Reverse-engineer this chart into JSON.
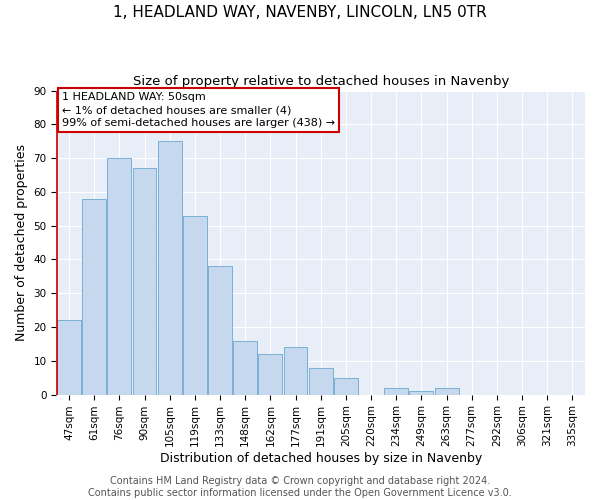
{
  "title": "1, HEADLAND WAY, NAVENBY, LINCOLN, LN5 0TR",
  "subtitle": "Size of property relative to detached houses in Navenby",
  "xlabel": "Distribution of detached houses by size in Navenby",
  "ylabel": "Number of detached properties",
  "bar_labels": [
    "47sqm",
    "61sqm",
    "76sqm",
    "90sqm",
    "105sqm",
    "119sqm",
    "133sqm",
    "148sqm",
    "162sqm",
    "177sqm",
    "191sqm",
    "205sqm",
    "220sqm",
    "234sqm",
    "249sqm",
    "263sqm",
    "277sqm",
    "292sqm",
    "306sqm",
    "321sqm",
    "335sqm"
  ],
  "bar_values": [
    22,
    58,
    70,
    67,
    75,
    53,
    38,
    16,
    12,
    14,
    8,
    5,
    0,
    2,
    1,
    2,
    0,
    0,
    0,
    0,
    0
  ],
  "bar_color": "#c5d8ee",
  "bar_edge_color": "#7aafd4",
  "highlight_edge_color": "#cc0000",
  "ylim": [
    0,
    90
  ],
  "yticks": [
    0,
    10,
    20,
    30,
    40,
    50,
    60,
    70,
    80,
    90
  ],
  "annotation_text": "1 HEADLAND WAY: 50sqm\n← 1% of detached houses are smaller (4)\n99% of semi-detached houses are larger (438) →",
  "annotation_box_facecolor": "#ffffff",
  "annotation_box_edgecolor": "#cc0000",
  "footer_text": "Contains HM Land Registry data © Crown copyright and database right 2024.\nContains public sector information licensed under the Open Government Licence v3.0.",
  "background_color": "#ffffff",
  "plot_background_color": "#e8eef8",
  "grid_color": "#ffffff",
  "title_fontsize": 11,
  "subtitle_fontsize": 9.5,
  "axis_label_fontsize": 9,
  "tick_fontsize": 7.5,
  "annotation_fontsize": 8,
  "footer_fontsize": 7
}
